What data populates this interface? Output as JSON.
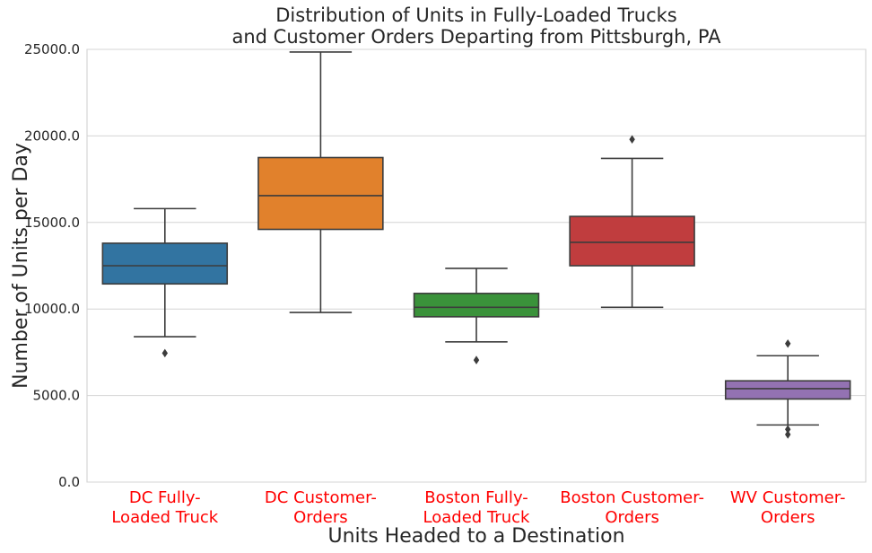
{
  "chart_data": {
    "type": "box",
    "title_lines": [
      "Distribution of Units in Fully-Loaded Trucks",
      "and Customer Orders Departing from Pittsburgh, PA"
    ],
    "xlabel": "Units Headed to a Destination",
    "ylabel": "Number of Units per Day",
    "ylim": [
      0,
      25000
    ],
    "yticks": [
      "0.0",
      "5000.0",
      "10000.0",
      "15000.0",
      "20000.0",
      "25000.0"
    ],
    "tick_color": "#ff0000",
    "grid": true,
    "categories": [
      {
        "label_lines": [
          "DC Fully-",
          "Loaded Truck"
        ],
        "color": "#3274a1",
        "whisker_low": 8400,
        "q1": 11450,
        "median": 12500,
        "q3": 13800,
        "whisker_high": 15800,
        "outliers": [
          7450
        ]
      },
      {
        "label_lines": [
          "DC Customer-",
          "Orders"
        ],
        "color": "#e1812c",
        "whisker_low": 9800,
        "q1": 14600,
        "median": 16550,
        "q3": 18750,
        "whisker_high": 24850,
        "outliers": []
      },
      {
        "label_lines": [
          "Boston Fully-",
          "Loaded Truck"
        ],
        "color": "#3a923a",
        "whisker_low": 8100,
        "q1": 9550,
        "median": 10100,
        "q3": 10900,
        "whisker_high": 12350,
        "outliers": [
          7050
        ]
      },
      {
        "label_lines": [
          "Boston Customer-",
          "Orders"
        ],
        "color": "#c03d3e",
        "whisker_low": 10100,
        "q1": 12500,
        "median": 13850,
        "q3": 15350,
        "whisker_high": 18700,
        "outliers": [
          19800
        ]
      },
      {
        "label_lines": [
          "WV Customer-",
          "Orders"
        ],
        "color": "#9372b2",
        "whisker_low": 3300,
        "q1": 4800,
        "median": 5400,
        "q3": 5850,
        "whisker_high": 7300,
        "outliers": [
          8000,
          3050,
          2750
        ]
      }
    ]
  }
}
